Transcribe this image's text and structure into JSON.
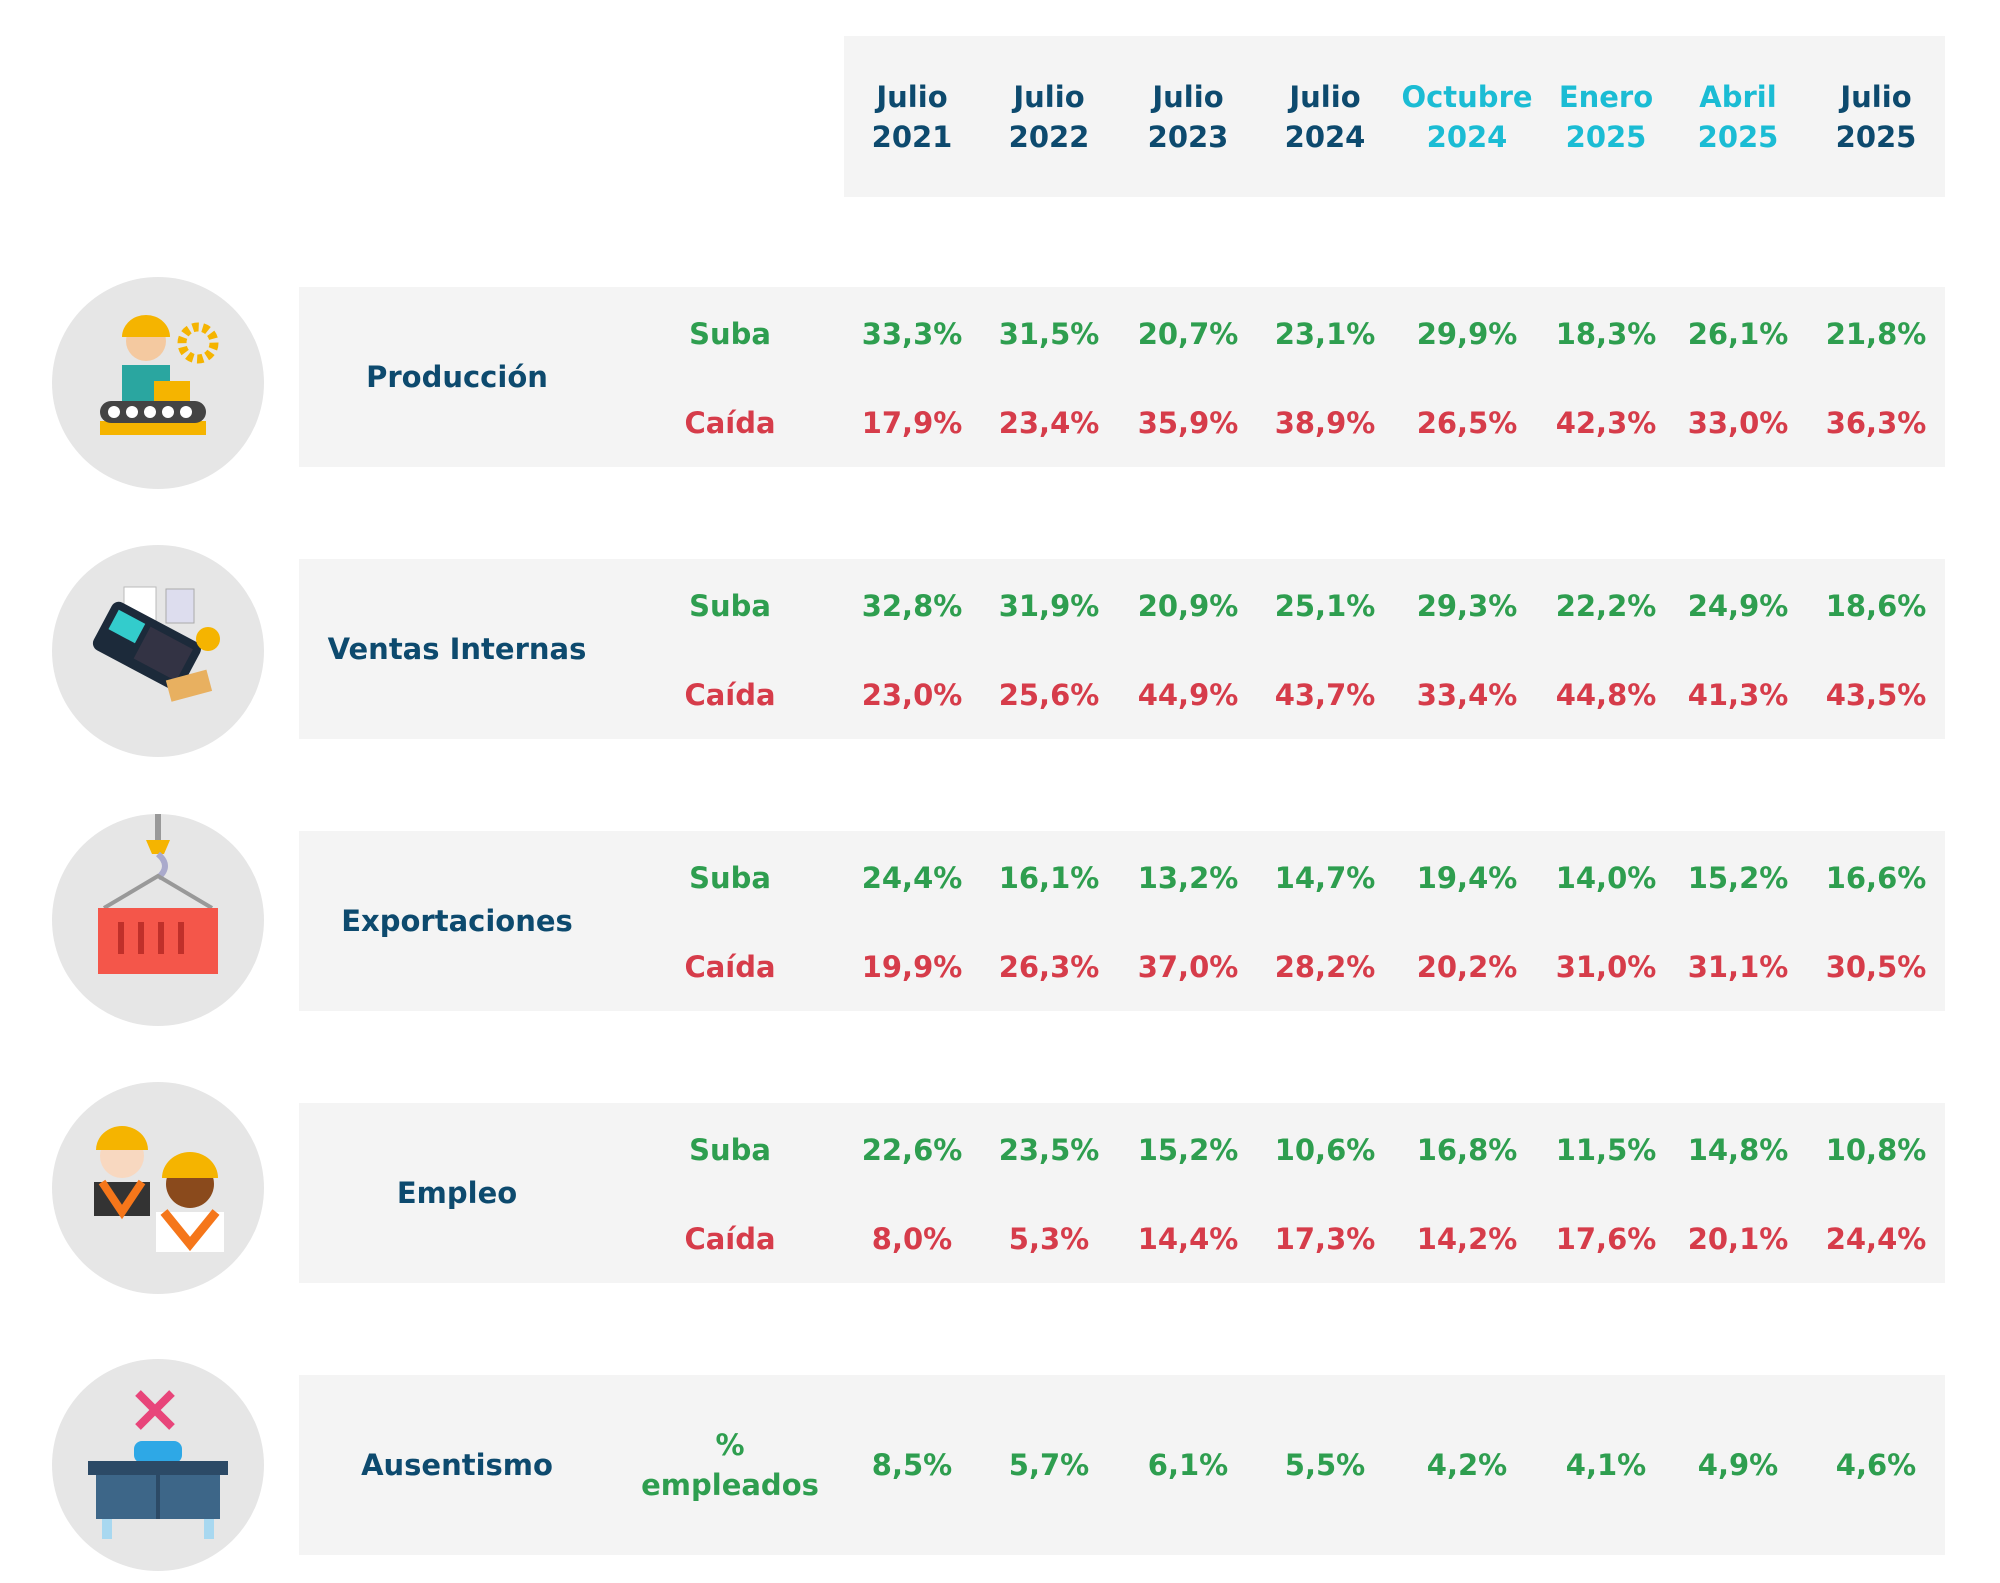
{
  "table": {
    "columns": [
      {
        "label": "Julio 2021",
        "color": "#0d4a6e"
      },
      {
        "label": "Julio 2022",
        "color": "#0d4a6e"
      },
      {
        "label": "Julio 2023",
        "color": "#0d4a6e"
      },
      {
        "label": "Julio 2024",
        "color": "#0d4a6e"
      },
      {
        "label": "Octubre 2024",
        "color": "#1bbcd4"
      },
      {
        "label": "Enero 2025",
        "color": "#1bbcd4"
      },
      {
        "label": "Abril 2025",
        "color": "#1bbcd4"
      },
      {
        "label": "Julio 2025",
        "color": "#0d4a6e"
      }
    ],
    "rows": [
      {
        "name": "Producción",
        "lines": [
          {
            "label": "Suba",
            "color": "#2e9e4f",
            "values": [
              "33,3%",
              "31,5%",
              "20,7%",
              "23,1%",
              "29,9%",
              "18,3%",
              "26,1%",
              "21,8%"
            ]
          },
          {
            "label": "Caída",
            "color": "#d63c4a",
            "values": [
              "17,9%",
              "23,4%",
              "35,9%",
              "38,9%",
              "26,5%",
              "42,3%",
              "33,0%",
              "36,3%"
            ]
          }
        ]
      },
      {
        "name": "Ventas Internas",
        "lines": [
          {
            "label": "Suba",
            "color": "#2e9e4f",
            "values": [
              "32,8%",
              "31,9%",
              "20,9%",
              "25,1%",
              "29,3%",
              "22,2%",
              "24,9%",
              "18,6%"
            ]
          },
          {
            "label": "Caída",
            "color": "#d63c4a",
            "values": [
              "23,0%",
              "25,6%",
              "44,9%",
              "43,7%",
              "33,4%",
              "44,8%",
              "41,3%",
              "43,5%"
            ]
          }
        ]
      },
      {
        "name": "Exportaciones",
        "lines": [
          {
            "label": "Suba",
            "color": "#2e9e4f",
            "values": [
              "24,4%",
              "16,1%",
              "13,2%",
              "14,7%",
              "19,4%",
              "14,0%",
              "15,2%",
              "16,6%"
            ]
          },
          {
            "label": "Caída",
            "color": "#d63c4a",
            "values": [
              "19,9%",
              "26,3%",
              "37,0%",
              "28,2%",
              "20,2%",
              "31,0%",
              "31,1%",
              "30,5%"
            ]
          }
        ]
      },
      {
        "name": "Empleo",
        "lines": [
          {
            "label": "Suba",
            "color": "#2e9e4f",
            "values": [
              "22,6%",
              "23,5%",
              "15,2%",
              "10,6%",
              "16,8%",
              "11,5%",
              "14,8%",
              "10,8%"
            ]
          },
          {
            "label": "Caída",
            "color": "#d63c4a",
            "values": [
              "8,0%",
              "5,3%",
              "14,4%",
              "17,3%",
              "14,2%",
              "17,6%",
              "20,1%",
              "24,4%"
            ]
          }
        ]
      },
      {
        "name": "Ausentismo",
        "lines": [
          {
            "label": "% empleados",
            "color": "#2e9e4f",
            "values": [
              "8,5%",
              "5,7%",
              "6,1%",
              "5,5%",
              "4,2%",
              "4,1%",
              "4,9%",
              "4,6%"
            ]
          }
        ]
      }
    ]
  }
}
